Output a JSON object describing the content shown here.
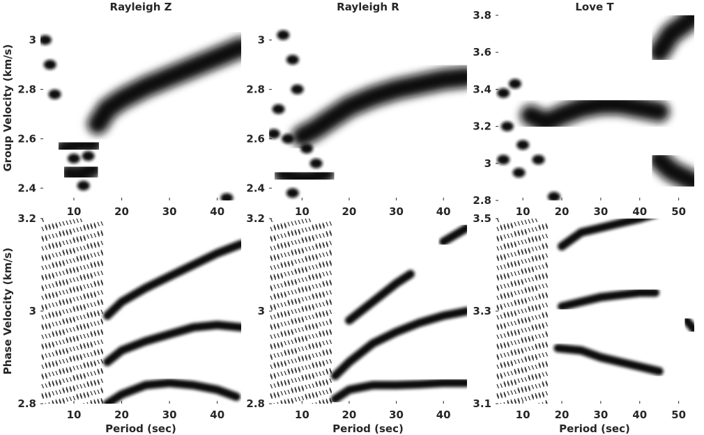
{
  "figure": {
    "row_labels": [
      "Group Velocity (km/s)",
      "Phase Velocity (km/s)"
    ],
    "column_titles": [
      "Rayleigh Z",
      "Rayleigh R",
      "Love T"
    ],
    "xlabel": "Period (sec)"
  },
  "colors": {
    "background": "#ffffff",
    "ink": "#111111",
    "axis_text": "#262626"
  },
  "chart_data": [
    {
      "type": "heatmap",
      "title": "Rayleigh Z",
      "ylabel": "Group Velocity (km/s)",
      "xlim": [
        3,
        45
      ],
      "ylim": [
        2.35,
        3.1
      ],
      "xticks": [
        10,
        20,
        30,
        40
      ],
      "yticks": [
        2.4,
        2.6,
        2.8,
        3
      ],
      "ridges": [
        {
          "x": [
            15,
            17,
            20,
            25,
            30,
            35,
            40,
            45
          ],
          "y": [
            2.66,
            2.72,
            2.76,
            2.81,
            2.85,
            2.89,
            2.93,
            2.97
          ]
        },
        {
          "x": [
            8,
            11,
            14
          ],
          "y": [
            2.56,
            2.58,
            2.58
          ]
        },
        {
          "x": [
            9,
            11,
            14
          ],
          "y": [
            2.46,
            2.45,
            2.48
          ]
        }
      ],
      "blobs": [
        {
          "x": 10,
          "y": 2.52
        },
        {
          "x": 13,
          "y": 2.53
        },
        {
          "x": 12,
          "y": 2.41
        },
        {
          "x": 42,
          "y": 2.36
        },
        {
          "x": 5,
          "y": 2.9
        },
        {
          "x": 4,
          "y": 3
        },
        {
          "x": 6,
          "y": 2.78
        }
      ]
    },
    {
      "type": "heatmap",
      "title": "Rayleigh R",
      "xlim": [
        3,
        45
      ],
      "ylim": [
        2.35,
        3.1
      ],
      "xticks": [
        10,
        20,
        30,
        40
      ],
      "yticks": [
        2.4,
        2.6,
        2.8,
        3
      ],
      "ridges": [
        {
          "x": [
            10,
            13,
            16,
            20,
            25,
            30,
            35,
            40,
            45
          ],
          "y": [
            2.61,
            2.64,
            2.68,
            2.73,
            2.77,
            2.8,
            2.82,
            2.84,
            2.85
          ]
        },
        {
          "x": [
            6,
            9,
            12,
            15
          ],
          "y": [
            2.46,
            2.44,
            2.44,
            2.46
          ]
        }
      ],
      "blobs": [
        {
          "x": 6,
          "y": 3.02
        },
        {
          "x": 8,
          "y": 2.92
        },
        {
          "x": 5,
          "y": 2.72
        },
        {
          "x": 9,
          "y": 2.8
        },
        {
          "x": 4,
          "y": 2.62
        },
        {
          "x": 7,
          "y": 2.6
        },
        {
          "x": 11,
          "y": 2.56
        },
        {
          "x": 13,
          "y": 2.5
        },
        {
          "x": 8,
          "y": 2.38
        }
      ]
    },
    {
      "type": "heatmap",
      "title": "Love T",
      "xlim": [
        3,
        54
      ],
      "ylim": [
        2.8,
        3.8
      ],
      "xticks": [
        10,
        20,
        30,
        40,
        50
      ],
      "yticks": [
        2.8,
        3,
        3.2,
        3.4,
        3.6,
        3.8
      ],
      "ridges": [
        {
          "x": [
            12,
            16,
            20,
            25,
            30,
            35,
            40,
            45
          ],
          "y": [
            3.26,
            3.22,
            3.26,
            3.3,
            3.32,
            3.32,
            3.3,
            3.28
          ]
        },
        {
          "x": [
            45,
            48,
            52,
            54
          ],
          "y": [
            3.6,
            3.7,
            3.76,
            3.8
          ]
        },
        {
          "x": [
            45,
            48,
            52,
            54
          ],
          "y": [
            3.02,
            2.96,
            2.92,
            2.9
          ]
        }
      ],
      "blobs": [
        {
          "x": 8,
          "y": 3.43
        },
        {
          "x": 5,
          "y": 3.38
        },
        {
          "x": 6,
          "y": 3.2
        },
        {
          "x": 10,
          "y": 3.1
        },
        {
          "x": 5,
          "y": 3.02
        },
        {
          "x": 9,
          "y": 2.95
        },
        {
          "x": 14,
          "y": 3.02
        },
        {
          "x": 18,
          "y": 2.82
        }
      ]
    },
    {
      "type": "heatmap",
      "ylabel": "Phase Velocity (km/s)",
      "xlabel": "Period (sec)",
      "xlim": [
        3,
        45
      ],
      "ylim": [
        2.8,
        3.2
      ],
      "xticks": [
        10,
        20,
        30,
        40
      ],
      "yticks": [
        2.8,
        3,
        3.2
      ],
      "ridges": [
        {
          "x": [
            17,
            20,
            25,
            30,
            35,
            40,
            44
          ],
          "y": [
            2.8,
            2.82,
            2.84,
            2.845,
            2.84,
            2.83,
            2.815
          ]
        },
        {
          "x": [
            17,
            20,
            25,
            30,
            35,
            40,
            45
          ],
          "y": [
            2.89,
            2.915,
            2.935,
            2.95,
            2.965,
            2.97,
            2.965
          ]
        },
        {
          "x": [
            17,
            20,
            25,
            30,
            35,
            40,
            45
          ],
          "y": [
            2.99,
            3.02,
            3.05,
            3.075,
            3.1,
            3.125,
            3.145
          ]
        }
      ]
    },
    {
      "type": "heatmap",
      "xlabel": "Period (sec)",
      "xlim": [
        3,
        45
      ],
      "ylim": [
        2.8,
        3.2
      ],
      "xticks": [
        10,
        20,
        30,
        40
      ],
      "yticks": [
        2.8,
        3,
        3.2
      ],
      "ridges": [
        {
          "x": [
            17,
            20,
            25,
            30,
            35,
            40,
            45
          ],
          "y": [
            2.81,
            2.83,
            2.84,
            2.84,
            2.842,
            2.845,
            2.845
          ]
        },
        {
          "x": [
            17,
            20,
            25,
            30,
            35,
            40,
            45
          ],
          "y": [
            2.86,
            2.89,
            2.93,
            2.955,
            2.975,
            2.99,
            3.0
          ]
        },
        {
          "x": [
            20,
            25,
            30,
            33
          ],
          "y": [
            2.98,
            3.02,
            3.06,
            3.08
          ]
        },
        {
          "x": [
            40,
            45
          ],
          "y": [
            3.15,
            3.18
          ]
        }
      ]
    },
    {
      "type": "heatmap",
      "xlabel": "Period (sec)",
      "xlim": [
        3,
        54
      ],
      "ylim": [
        3.1,
        3.5
      ],
      "xticks": [
        10,
        20,
        30,
        40,
        50
      ],
      "yticks": [
        3.1,
        3.3,
        3.5
      ],
      "ridges": [
        {
          "x": [
            20,
            25,
            30,
            35,
            40,
            44
          ],
          "y": [
            3.44,
            3.47,
            3.48,
            3.49,
            3.5,
            3.51
          ]
        },
        {
          "x": [
            20,
            25,
            30,
            35,
            40,
            44
          ],
          "y": [
            3.31,
            3.32,
            3.33,
            3.335,
            3.34,
            3.34
          ]
        },
        {
          "x": [
            19,
            25,
            30,
            35,
            40,
            45
          ],
          "y": [
            3.22,
            3.215,
            3.2,
            3.19,
            3.18,
            3.17
          ]
        },
        {
          "x": [
            52,
            54
          ],
          "y": [
            3.28,
            3.26
          ]
        }
      ]
    }
  ]
}
